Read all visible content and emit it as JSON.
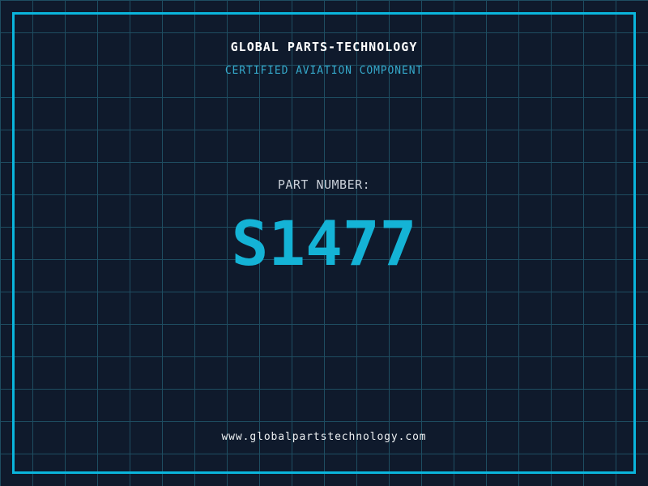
{
  "colors": {
    "background": "#0f1a2c",
    "grid-line": "#1e4d61",
    "frame": "#0ab5dc",
    "title": "#ffffff",
    "subtitle": "#35a9cb",
    "label": "#c9cfd8",
    "number": "#14b3d6",
    "url": "#edf0f2"
  },
  "header": {
    "title": "GLOBAL PARTS-TECHNOLOGY",
    "subtitle": "CERTIFIED AVIATION COMPONENT"
  },
  "part": {
    "label": "PART NUMBER:",
    "number": "S1477"
  },
  "footer": {
    "website": "www.globalpartstechnology.com"
  }
}
